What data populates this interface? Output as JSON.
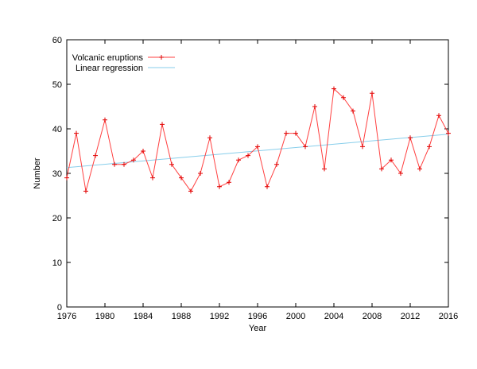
{
  "chart_data": {
    "type": "line",
    "title": "",
    "xlabel": "Year",
    "ylabel": "Number",
    "xlim": [
      1976,
      2016
    ],
    "ylim": [
      0,
      60
    ],
    "xticks": [
      1976,
      1980,
      1984,
      1988,
      1992,
      1996,
      2000,
      2004,
      2008,
      2012,
      2016
    ],
    "yticks": [
      0,
      10,
      20,
      30,
      40,
      50,
      60
    ],
    "grid": false,
    "legend_position": "top-left",
    "x": [
      1976,
      1977,
      1978,
      1979,
      1980,
      1981,
      1982,
      1983,
      1984,
      1985,
      1986,
      1987,
      1988,
      1989,
      1990,
      1991,
      1992,
      1993,
      1994,
      1995,
      1996,
      1997,
      1998,
      1999,
      2000,
      2001,
      2002,
      2003,
      2004,
      2005,
      2006,
      2007,
      2008,
      2009,
      2010,
      2011,
      2012,
      2013,
      2014,
      2015,
      2016
    ],
    "series": [
      {
        "name": "Volcanic eruptions",
        "color": "#ff4040",
        "marker": "plus",
        "values": [
          29,
          39,
          26,
          34,
          42,
          32,
          32,
          33,
          35,
          29,
          41,
          32,
          29,
          26,
          30,
          38,
          27,
          28,
          33,
          34,
          36,
          27,
          32,
          39,
          39,
          36,
          45,
          31,
          49,
          47,
          44,
          36,
          48,
          31,
          33,
          30,
          38,
          31,
          36,
          43,
          39
        ]
      },
      {
        "name": "Linear regression",
        "color": "#87ceeb",
        "type": "line",
        "endpoints": [
          [
            1976,
            31.3
          ],
          [
            2016,
            38.8
          ]
        ]
      }
    ]
  }
}
